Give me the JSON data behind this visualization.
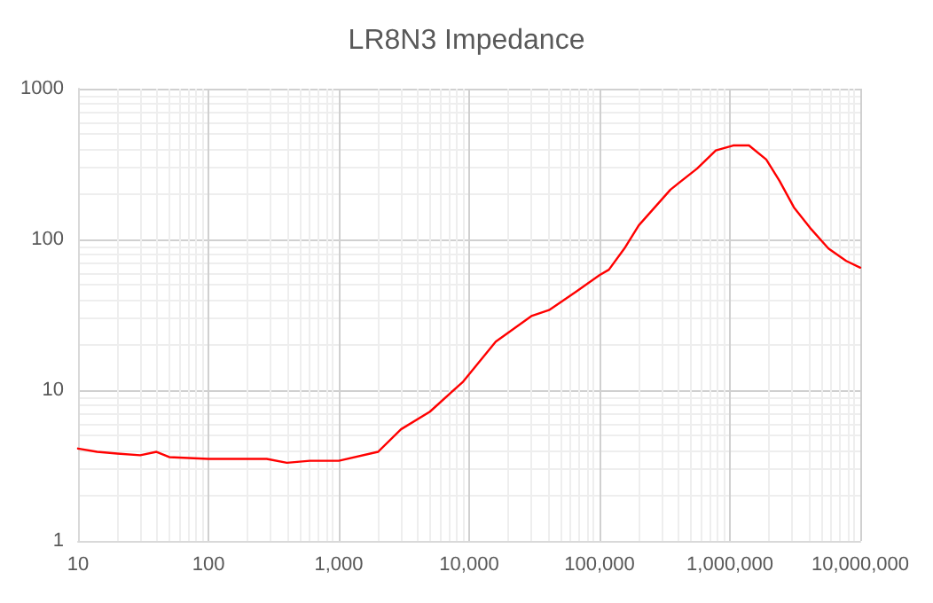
{
  "chart_data": {
    "type": "line",
    "title": "LR8N3 Impedance",
    "log": "xy",
    "grid": true,
    "marker": "none",
    "line_style": "solid",
    "xlim": [
      10,
      10000000
    ],
    "xticks": [
      10,
      100,
      {
        "value": 1000,
        "label": "1,000"
      },
      {
        "value": 10000,
        "label": "10,000"
      },
      {
        "value": 100000,
        "label": "100,000"
      },
      {
        "value": 1000000,
        "label": "1,000,000"
      },
      {
        "value": 10000000,
        "label": "10,000,000"
      }
    ],
    "ylim": [
      1,
      1000
    ],
    "yticks": [
      1,
      10,
      100,
      1000
    ],
    "series": [
      {
        "color": "#ff0000",
        "x": [
          10,
          14,
          20,
          30,
          40,
          50,
          100,
          200,
          280,
          400,
          600,
          1000,
          2000,
          3000,
          5000,
          9000,
          16000,
          30000,
          41000,
          66000,
          100000,
          118000,
          155000,
          200000,
          350000,
          560000,
          780000,
          1060000,
          1400000,
          1900000,
          2400000,
          3100000,
          4200000,
          5700000,
          7800000,
          10000000
        ],
        "values": [
          4.1,
          3.9,
          3.8,
          3.7,
          3.9,
          3.6,
          3.5,
          3.5,
          3.5,
          3.3,
          3.4,
          3.4,
          3.9,
          5.5,
          7.2,
          11.4,
          21,
          31,
          34,
          45,
          58,
          63,
          87,
          124,
          214,
          295,
          389,
          420,
          420,
          339,
          245,
          163,
          117,
          87,
          72,
          65
        ]
      }
    ]
  }
}
